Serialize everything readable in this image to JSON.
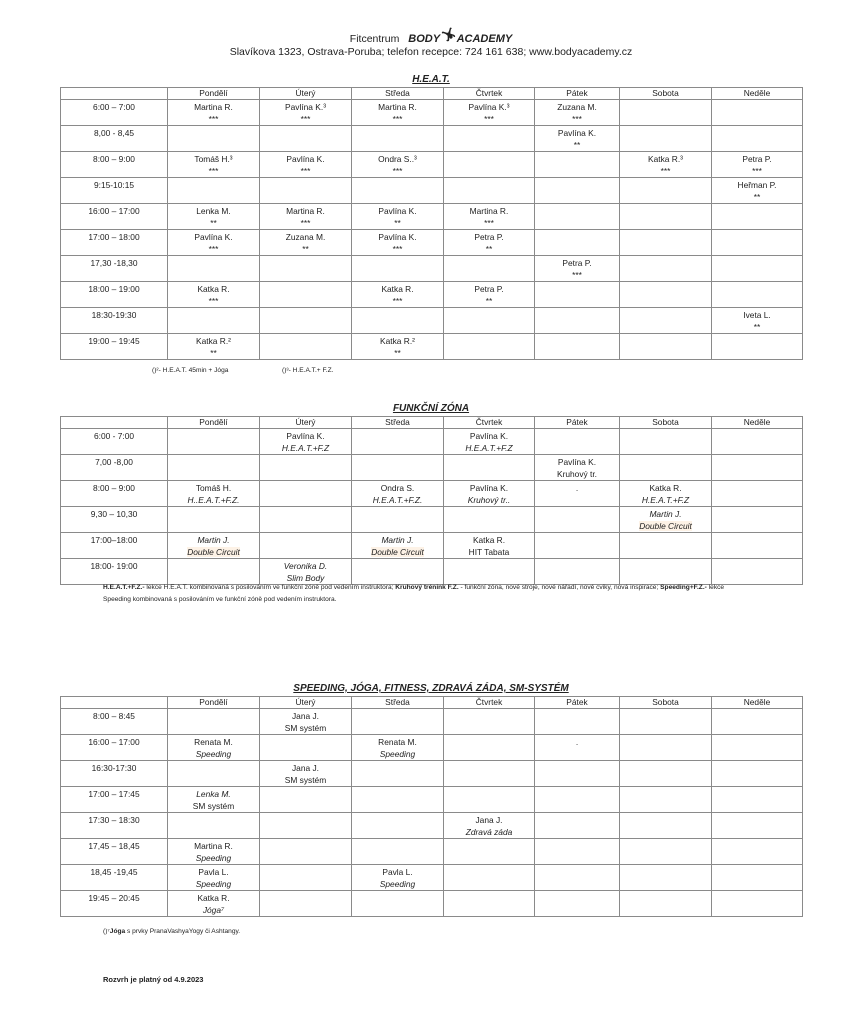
{
  "header": {
    "prefix": "Fitcentrum",
    "logo_left": "BODY",
    "logo_right": "ACADEMY",
    "logo_icon": "dancing-figure-icon",
    "address": "Slavíkova 1323, Ostrava-Poruba; telefon recepce: 724 161 638; www.bodyacademy.cz"
  },
  "days": [
    "Pondělí",
    "Úterý",
    "Středa",
    "Čtvrtek",
    "Pátek",
    "Sobota",
    "Neděle"
  ],
  "tables": [
    {
      "title": "H.E.A.T.",
      "rows": [
        {
          "time": "6:00 – 7:00",
          "cells": [
            {
              "n": "Martina R.",
              "s": "***"
            },
            {
              "n": "Pavlína K.³",
              "s": "***"
            },
            {
              "n": "Martina R.",
              "s": "***"
            },
            {
              "n": "Pavlína K.³",
              "s": "***"
            },
            {
              "n": "Zuzana M.",
              "s": "***"
            },
            {},
            {}
          ]
        },
        {
          "time": "8,00 - 8,45",
          "cells": [
            {},
            {},
            {},
            {},
            {
              "n": "Pavlína K.",
              "s": "**"
            },
            {},
            {}
          ]
        },
        {
          "time": "8:00 – 9:00",
          "cells": [
            {
              "n": "Tomáš H.³",
              "s": "***"
            },
            {
              "n": "Pavlína K.",
              "s": "***"
            },
            {
              "n": "Ondra S..³",
              "s": "***"
            },
            {},
            {},
            {
              "n": "Katka R.³",
              "s": "***"
            },
            {
              "n": "Petra P.",
              "s": "***"
            }
          ]
        },
        {
          "time": "9:15-10:15",
          "cells": [
            {},
            {},
            {},
            {},
            {},
            {},
            {
              "n": "Heřman P.",
              "s": "**"
            }
          ]
        },
        {
          "time": "16:00 – 17:00",
          "cells": [
            {
              "n": "Lenka M.",
              "s": "**"
            },
            {
              "n": "Martina R.",
              "s": "***"
            },
            {
              "n": "Pavlína K.",
              "s": "**"
            },
            {
              "n": "Martina R.",
              "s": "***"
            },
            {},
            {},
            {}
          ]
        },
        {
          "time": "17:00 – 18:00",
          "cells": [
            {
              "n": "Pavlína K.",
              "s": "***"
            },
            {
              "n": "Zuzana M.",
              "s": "**"
            },
            {
              "n": "Pavlína K.",
              "s": "***"
            },
            {
              "n": "Petra P.",
              "s": "**"
            },
            {},
            {},
            {}
          ]
        },
        {
          "time": "17,30 -18,30",
          "cells": [
            {},
            {},
            {},
            {},
            {
              "n": "Petra P.",
              "s": "***"
            },
            {},
            {}
          ]
        },
        {
          "time": "18:00 – 19:00",
          "cells": [
            {
              "n": "Katka R.",
              "s": "***"
            },
            {},
            {
              "n": "Katka R.",
              "s": "***"
            },
            {
              "n": "Petra P.",
              "s": "**"
            },
            {},
            {},
            {}
          ]
        },
        {
          "time": "18:30-19:30",
          "cells": [
            {},
            {},
            {},
            {},
            {},
            {},
            {
              "n": "Iveta L.",
              "s": "**"
            }
          ]
        },
        {
          "time": "19:00 – 19:45",
          "cells": [
            {
              "n": "Katka R.²",
              "s": "**"
            },
            {},
            {
              "n": "Katka R.²",
              "s": "**"
            },
            {},
            {},
            {},
            {}
          ]
        }
      ],
      "notes": [
        "()²- H.E.A.T. 45min + Jóga",
        "()³- H.E.A.T.+ F.Z."
      ]
    },
    {
      "title": "FUNKČNÍ ZÓNA",
      "rows": [
        {
          "time": "6:00 -   7:00",
          "cells": [
            {},
            {
              "n": "Pavlína K.",
              "s": "H.E.A.T.+F.Z",
              "si": true
            },
            {},
            {
              "n": "Pavlína K.",
              "s": "H.E.A.T.+F.Z",
              "si": true
            },
            {},
            {},
            {}
          ]
        },
        {
          "time": "7,00 -8,00",
          "cells": [
            {},
            {},
            {},
            {},
            {
              "n": "Pavlína K.",
              "s": "Kruhový tr."
            },
            {},
            {}
          ]
        },
        {
          "time": "8:00 – 9:00",
          "cells": [
            {
              "n": "Tomáš H.",
              "s": "H..E.A.T.+F.Z.",
              "si": true
            },
            {},
            {
              "n": "Ondra S.",
              "s": "H.E.A.T.+F.Z.",
              "si": true
            },
            {
              "n": "Pavlína K.",
              "s": "Kruhový tr..",
              "si": true
            },
            {
              "n": "."
            },
            {
              "n": "Katka R.",
              "s": "H.E.A.T.+F.Z",
              "si": true
            },
            {}
          ]
        },
        {
          "time": "9,30 – 10,30",
          "cells": [
            {},
            {},
            {},
            {},
            {},
            {
              "n": "Martin J.",
              "s": "Double Circuit",
              "ni": true,
              "si": true,
              "hl": true
            },
            {}
          ]
        },
        {
          "time": "17:00–18:00",
          "cells": [
            {
              "n": "Martin J.",
              "s": "Double Circuit",
              "ni": true,
              "si": true,
              "hl": true
            },
            {},
            {
              "n": "Martin J.",
              "s": "Double Circuit",
              "ni": true,
              "si": true,
              "hl": true
            },
            {
              "n": "Katka R.",
              "s": "HIT Tabata"
            },
            {},
            {},
            {}
          ]
        },
        {
          "time": "18:00- 19:00",
          "cells": [
            {},
            {
              "n": "Veronika D.",
              "s": "Slim Body",
              "ni": true,
              "si": true
            },
            {},
            {},
            {},
            {},
            {}
          ]
        }
      ],
      "legend": {
        "t1": "H.E.A.T.+F.Z.-",
        "d1": " lekce H.E.A.T. kombinovaná s posilováním ve funkční zóně pod vedením instruktora; ",
        "t2": "Kruhový trénink F.Z.",
        "d2": " - funkční zóna, nové stroje, nové nářadí, nové cviky, nová inspirace;  ",
        "t3": "Speeding+F.Z.-",
        "d3": " lekce Speeding kombinovaná s posilováním ve funkční zóně pod vedením instruktora."
      }
    },
    {
      "title": "SPEEDING, JÓGA, FITNESS, ZDRAVÁ ZÁDA, SM-SYSTÉM",
      "rows": [
        {
          "time": "8:00 – 8:45",
          "cells": [
            {},
            {
              "n": "Jana J.",
              "s": "SM systém"
            },
            {},
            {},
            {},
            {},
            {}
          ]
        },
        {
          "time": "16:00 – 17:00",
          "cells": [
            {
              "n": "Renata M.",
              "s": "Speeding",
              "si": true
            },
            {},
            {
              "n": "Renata M.",
              "s": "Speeding",
              "si": true
            },
            {},
            {
              "n": "."
            },
            {},
            {}
          ]
        },
        {
          "time": "16:30-17:30",
          "cells": [
            {},
            {
              "n": "Jana J.",
              "s": "SM systém"
            },
            {},
            {},
            {},
            {},
            {}
          ]
        },
        {
          "time": "17:00 – 17:45",
          "cells": [
            {
              "n": "Lenka M.",
              "s": "SM systém",
              "ni": true
            },
            {},
            {},
            {},
            {},
            {},
            {}
          ]
        },
        {
          "time": "17:30 – 18:30",
          "cells": [
            {},
            {},
            {},
            {
              "n": "Jana J.",
              "s": "Zdravá záda",
              "si": true
            },
            {},
            {},
            {}
          ]
        },
        {
          "time": "17,45 – 18,45",
          "cells": [
            {
              "n": "Martina R.",
              "s": "Speeding",
              "si": true
            },
            {},
            {},
            {},
            {},
            {},
            {}
          ]
        },
        {
          "time": "18,45 -19,45",
          "cells": [
            {
              "n": "Pavla L.",
              "s": "Speeding",
              "si": true
            },
            {},
            {
              "n": "Pavla L.",
              "s": "Speeding",
              "si": true
            },
            {},
            {},
            {},
            {}
          ]
        },
        {
          "time": "19:45 – 20:45",
          "cells": [
            {
              "n": "Katka R.",
              "s": "Jóga⁷",
              "si": true
            },
            {},
            {},
            {},
            {},
            {},
            {}
          ]
        }
      ],
      "note_prefix": "()⁷",
      "note_bold": "Jóga",
      "note_text": " s prvky PranaVashyaYogy či Ashtangy."
    }
  ],
  "validity": "Rozvrh je platný od 4.9.2023"
}
